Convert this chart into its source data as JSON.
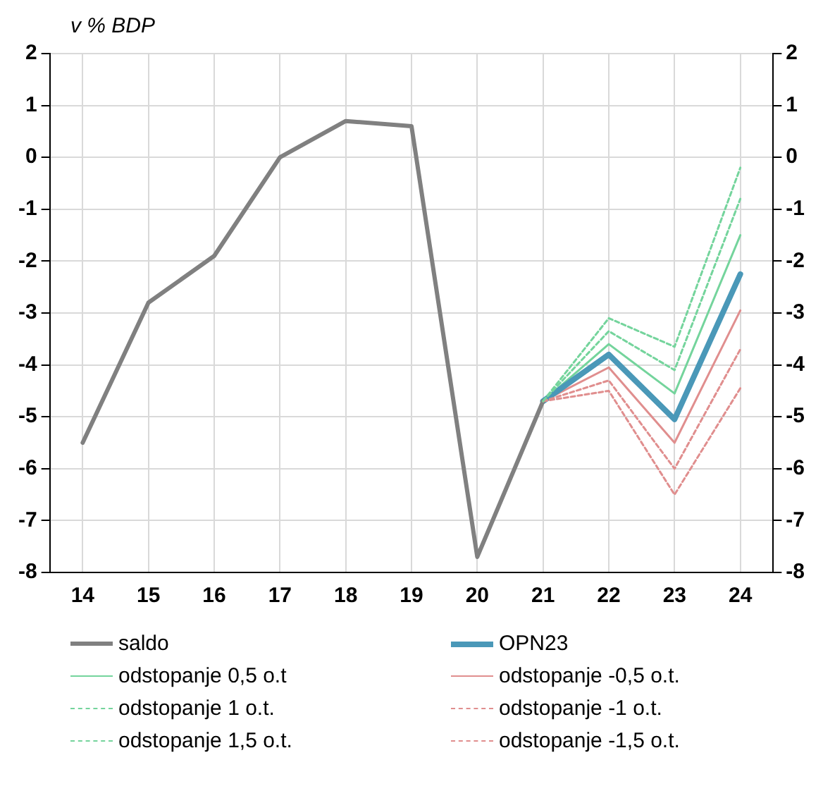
{
  "chart_data": {
    "type": "line",
    "ylabel": "v % BDP",
    "categories": [
      "14",
      "15",
      "16",
      "17",
      "18",
      "19",
      "20",
      "21",
      "22",
      "23",
      "24"
    ],
    "series": [
      {
        "name": "saldo",
        "color": "#808080",
        "values": [
          -5.5,
          -2.8,
          -1.9,
          0.0,
          0.7,
          0.6,
          -7.7,
          -4.7,
          null,
          null,
          null
        ]
      },
      {
        "name": "OPN23",
        "color": "#4a98b8",
        "values": [
          null,
          null,
          null,
          null,
          null,
          null,
          null,
          -4.7,
          -3.8,
          -5.05,
          -2.25
        ]
      },
      {
        "name": "odstopanje 0,5 o.t",
        "color": "#74d49c",
        "values": [
          null,
          null,
          null,
          null,
          null,
          null,
          null,
          -4.7,
          -3.6,
          -4.55,
          -1.5
        ]
      },
      {
        "name": "odstopanje -0,5 o.t.",
        "color": "#e08e8e",
        "values": [
          null,
          null,
          null,
          null,
          null,
          null,
          null,
          -4.7,
          -4.05,
          -5.5,
          -2.95
        ]
      },
      {
        "name": "odstopanje 1 o.t.",
        "color": "#74d49c",
        "line_style": "dashed",
        "values": [
          null,
          null,
          null,
          null,
          null,
          null,
          null,
          -4.7,
          -3.35,
          -4.1,
          -0.8
        ]
      },
      {
        "name": "odstopanje -1 o.t.",
        "color": "#e08e8e",
        "line_style": "dashed",
        "values": [
          null,
          null,
          null,
          null,
          null,
          null,
          null,
          -4.7,
          -4.3,
          -6.0,
          -3.7
        ]
      },
      {
        "name": "odstopanje 1,5 o.t.",
        "color": "#74d49c",
        "line_style": "dashed",
        "values": [
          null,
          null,
          null,
          null,
          null,
          null,
          null,
          -4.7,
          -3.1,
          -3.65,
          -0.2
        ]
      },
      {
        "name": "odstopanje -1,5 o.t.",
        "color": "#e08e8e",
        "line_style": "dashed",
        "values": [
          null,
          null,
          null,
          null,
          null,
          null,
          null,
          -4.7,
          -4.5,
          -6.5,
          -4.45
        ]
      }
    ],
    "ylim": [
      -8,
      2
    ],
    "yticks": [
      -8,
      -7,
      -6,
      -5,
      -4,
      -3,
      -2,
      -1,
      0,
      1,
      2
    ],
    "y2lim": [
      -8,
      2
    ],
    "y2ticks": [
      -8,
      -7,
      -6,
      -5,
      -4,
      -3,
      -2,
      -1,
      0,
      1,
      2
    ],
    "grid": true,
    "legend": "bottom",
    "marker": "none",
    "line_style": "solid"
  }
}
